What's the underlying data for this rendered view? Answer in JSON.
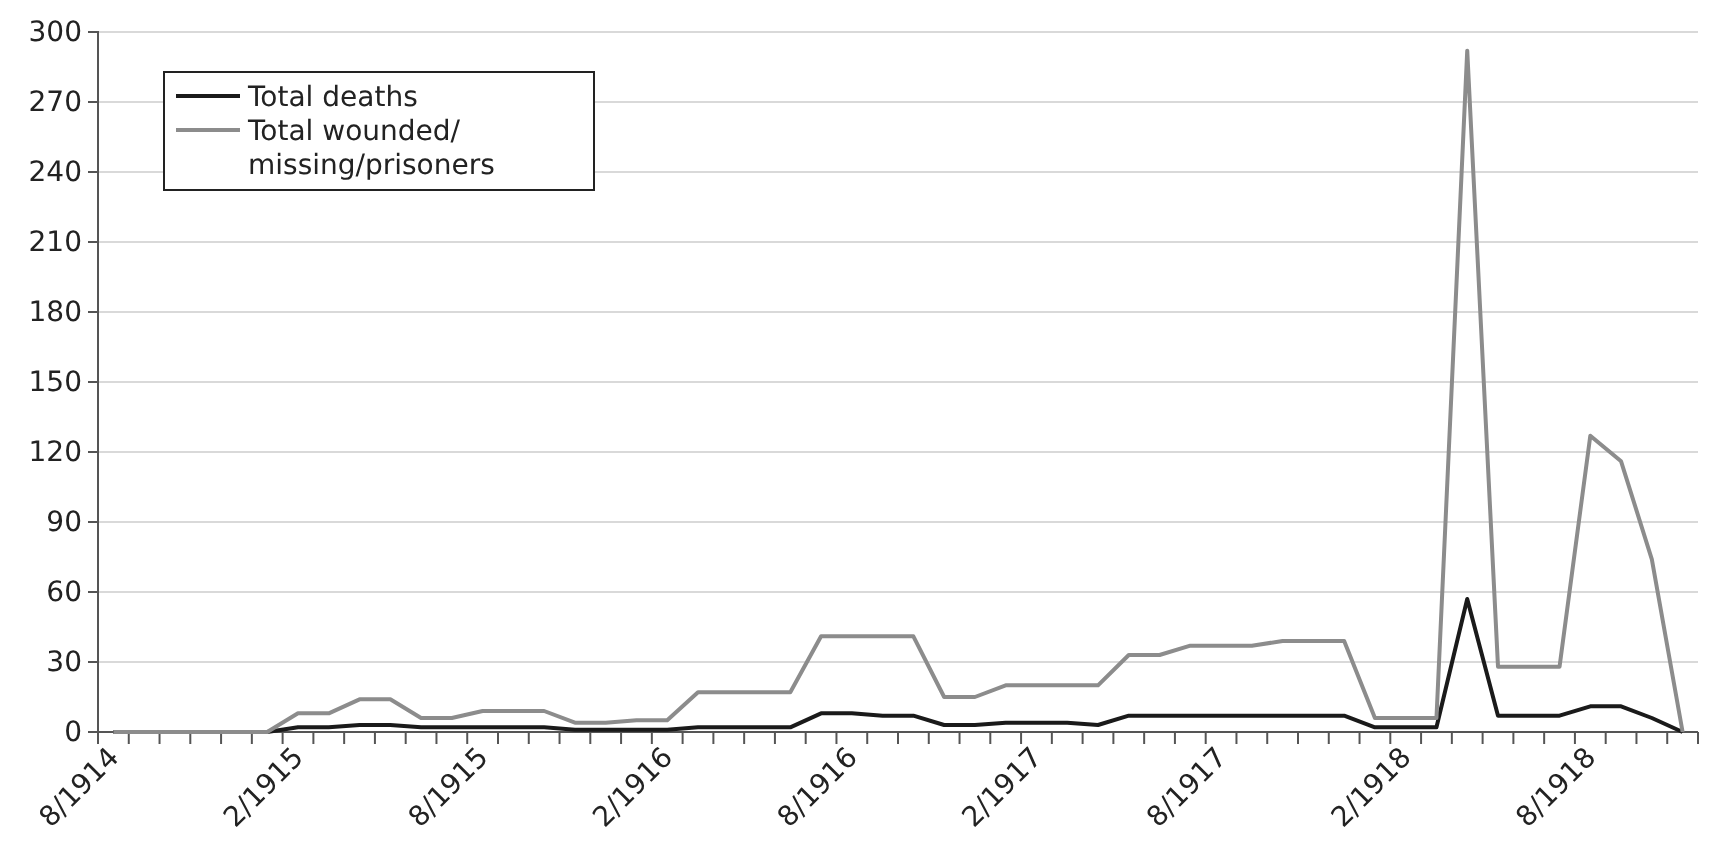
{
  "chart_data": {
    "type": "line",
    "categories": [
      "8/1914",
      null,
      null,
      null,
      null,
      null,
      "2/1915",
      null,
      null,
      null,
      null,
      null,
      "8/1915",
      null,
      null,
      null,
      null,
      null,
      "2/1916",
      null,
      null,
      null,
      null,
      null,
      "8/1916",
      null,
      null,
      null,
      null,
      null,
      "2/1917",
      null,
      null,
      null,
      null,
      null,
      "8/1917",
      null,
      null,
      null,
      null,
      null,
      "2/1918",
      null,
      null,
      null,
      null,
      null,
      "8/1918",
      null,
      null,
      null
    ],
    "series": [
      {
        "name": "Total deaths",
        "color": "#1a1a1a",
        "values": [
          0,
          0,
          0,
          0,
          0,
          0,
          2,
          2,
          3,
          3,
          2,
          2,
          2,
          2,
          2,
          1,
          1,
          1,
          1,
          2,
          2,
          2,
          2,
          8,
          8,
          7,
          7,
          3,
          3,
          4,
          4,
          4,
          3,
          7,
          7,
          7,
          7,
          7,
          7,
          7,
          7,
          2,
          2,
          2,
          57,
          7,
          7,
          7,
          11,
          11,
          6,
          0
        ]
      },
      {
        "name": "Total wounded/missing/prisoners",
        "color": "#8c8c8c",
        "values": [
          0,
          0,
          0,
          0,
          0,
          0,
          8,
          8,
          14,
          14,
          6,
          6,
          9,
          9,
          9,
          4,
          4,
          5,
          5,
          17,
          17,
          17,
          17,
          41,
          41,
          41,
          41,
          15,
          15,
          20,
          20,
          20,
          20,
          33,
          33,
          37,
          37,
          37,
          39,
          39,
          39,
          6,
          6,
          6,
          292,
          28,
          28,
          28,
          127,
          116,
          74,
          0
        ]
      }
    ],
    "ylim": [
      0,
      300
    ],
    "yticks": [
      0,
      30,
      60,
      90,
      120,
      150,
      180,
      210,
      240,
      270,
      300
    ],
    "grid": "y",
    "legend": "top left",
    "marker": "none",
    "line_style": "solid"
  }
}
